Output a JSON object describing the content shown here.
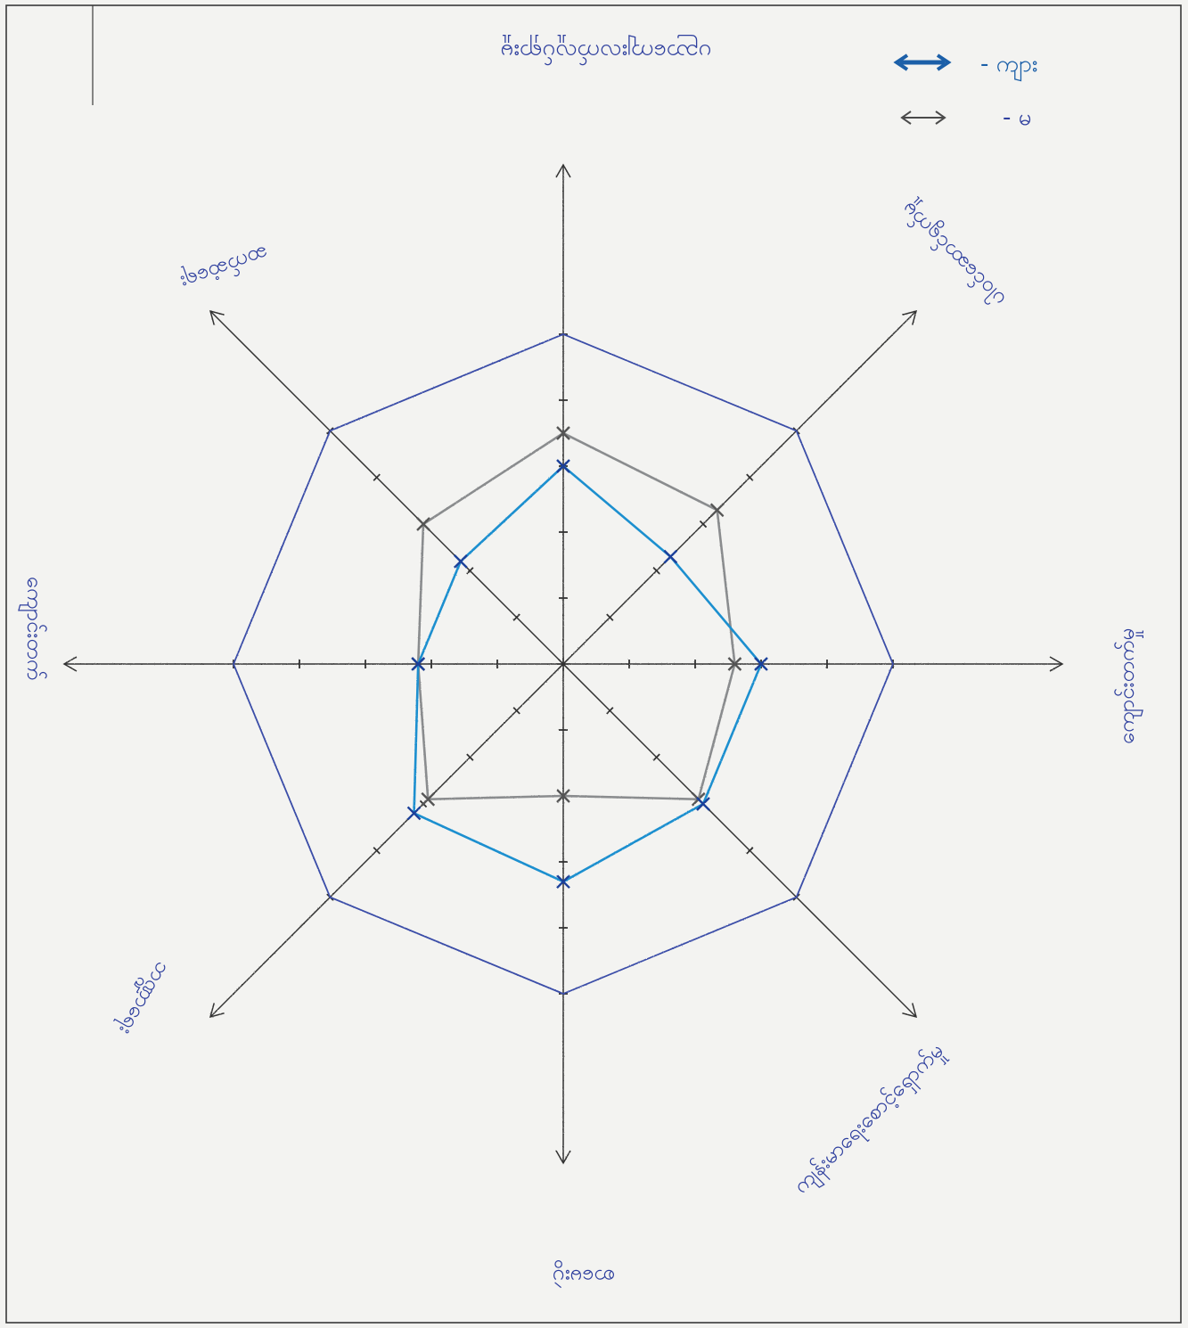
{
  "chart_data": {
    "type": "radar",
    "title": "",
    "axes": [
      "ပညာကျေးလက်လှုပ်ရှားမှု",
      "ပါဝင်ဆောင်ရွက်မှု",
      "ကျောင်းတက်မှု",
      "ကျန်းမာရေးစောင့်ရှောက်မှု",
      "စာမေးပွဲ",
      "ဘဏ္ဍာရေး",
      "ကျောင်းတက်",
      "ဆက်ဆံရေး"
    ],
    "rmax": 5,
    "ticks": [
      1,
      2,
      3,
      4,
      5
    ],
    "series": [
      {
        "name": "ကျား",
        "color": "#1b8fcf",
        "values": [
          3,
          2.3,
          3,
          3,
          3.3,
          3.2,
          2.2,
          2.2
        ]
      },
      {
        "name": "မ",
        "color": "#8a8c8e",
        "values": [
          3.5,
          3.3,
          2.6,
          2.9,
          2,
          2.9,
          2.2,
          3
        ]
      }
    ],
    "outer_polygon_color": "#3b4ea8",
    "axis_color": "#333333",
    "legend": "top-right"
  }
}
